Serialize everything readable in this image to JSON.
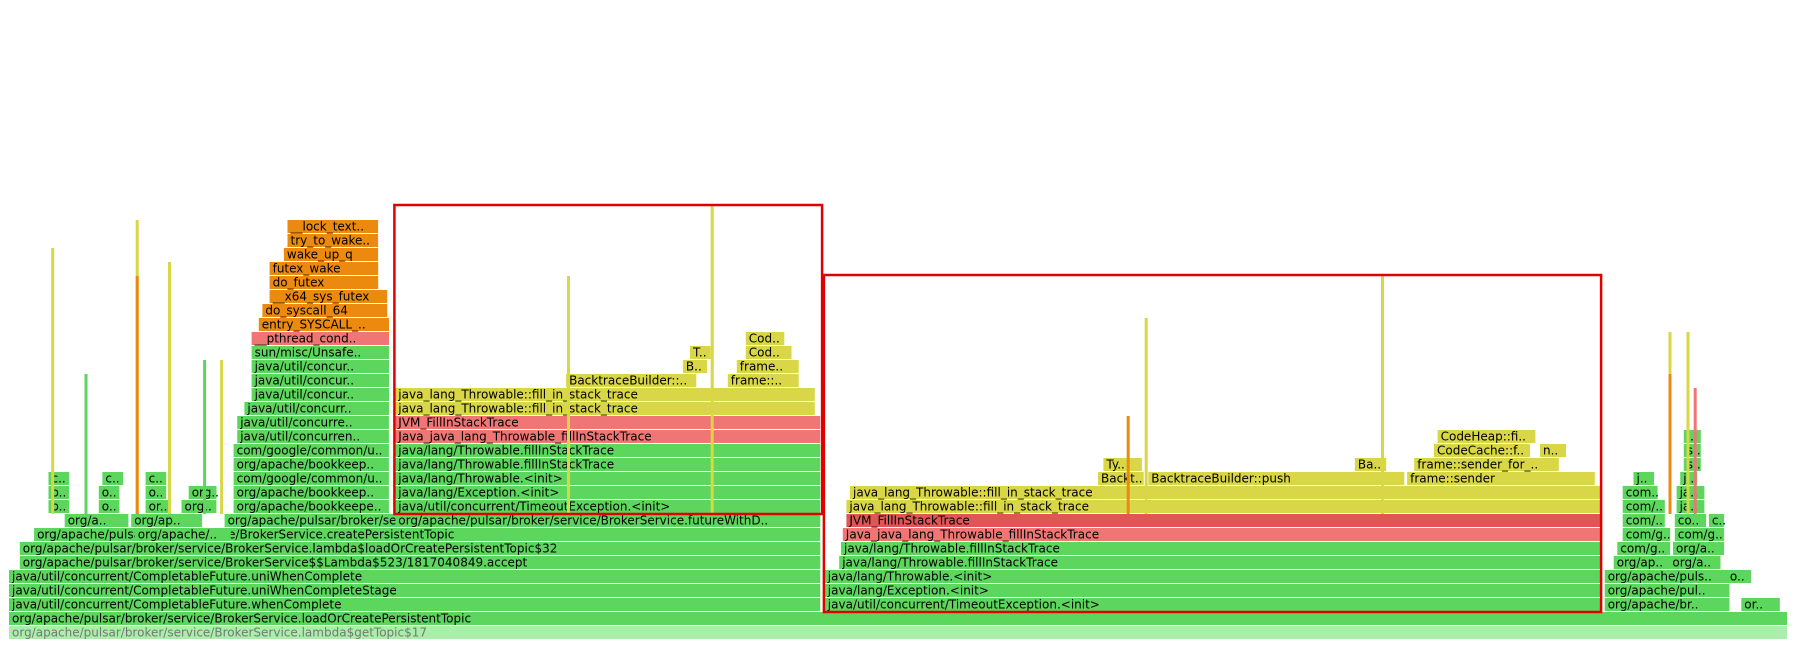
{
  "chart_data": {
    "type": "flamegraph",
    "colors": {
      "green": "#5dd65d",
      "green_dark": "#4fc94f",
      "green_light": "#a9efa9",
      "yellow": "#d9d647",
      "red": "#f07575",
      "red_dark": "#e05555",
      "orange": "#ec8a10",
      "highlight": "#e00000"
    },
    "frames": [
      {
        "label": "org/apache/pulsar/broker/service/BrokerService.lambda$getTopic$17",
        "x": 0.005,
        "w": 0.99,
        "depth": 0,
        "color": "green_light",
        "faded": true
      },
      {
        "label": "org/apache/pulsar/broker/service/BrokerService.loadOrCreatePersistentTopic",
        "x": 0.005,
        "w": 0.99,
        "depth": 1,
        "color": "green"
      },
      {
        "label": "java/util/concurrent/CompletableFuture.whenComplete",
        "x": 0.005,
        "w": 0.452,
        "depth": 2,
        "color": "green"
      },
      {
        "label": "java/util/concurrent/CompletableFuture.uniWhenCompleteStage",
        "x": 0.005,
        "w": 0.452,
        "depth": 3,
        "color": "green"
      },
      {
        "label": "java/util/concurrent/CompletableFuture.uniWhenComplete",
        "x": 0.005,
        "w": 0.452,
        "depth": 4,
        "color": "green"
      },
      {
        "label": "org/apache/pulsar/broker/service/BrokerService$$Lambda$523/1817040849.accept",
        "x": 0.011,
        "w": 0.446,
        "depth": 5,
        "color": "green"
      },
      {
        "label": "org/apache/pulsar/broker/service/BrokerService.lambda$loadOrCreatePersistentTopic$32",
        "x": 0.011,
        "w": 0.446,
        "depth": 6,
        "color": "green"
      },
      {
        "label": "org/apache/pulsar/broker/service/BrokerService.createPersistentTopic",
        "x": 0.019,
        "w": 0.438,
        "depth": 7,
        "color": "green"
      },
      {
        "label": "org/a..",
        "x": 0.036,
        "w": 0.036,
        "depth": 8,
        "color": "green"
      },
      {
        "label": "org/ap..",
        "x": 0.073,
        "w": 0.04,
        "depth": 8,
        "color": "green"
      },
      {
        "label": "org/apache/..",
        "x": 0.075,
        "w": 0.054,
        "depth": 7,
        "color": "green"
      },
      {
        "label": "org/apache/pulsar/broker/service/BrokerService.getManagedLedgerConfig",
        "x": 0.125,
        "w": 0.332,
        "depth": 8,
        "color": "green"
      },
      {
        "label": "org/apache/bookkeepe..",
        "x": 0.13,
        "w": 0.087,
        "depth": 9,
        "color": "green"
      },
      {
        "label": "org/apache/bookkeep..",
        "x": 0.13,
        "w": 0.087,
        "depth": 10,
        "color": "green"
      },
      {
        "label": "org/apache/bookkeep..",
        "x": 0.13,
        "w": 0.087,
        "depth": 12,
        "color": "green"
      },
      {
        "label": "com/google/common/u..",
        "x": 0.13,
        "w": 0.087,
        "depth": 11,
        "color": "green"
      },
      {
        "label": "com/google/common/u..",
        "x": 0.13,
        "w": 0.087,
        "depth": 13,
        "color": "green"
      },
      {
        "label": "java/util/concurren..",
        "x": 0.132,
        "w": 0.085,
        "depth": 14,
        "color": "green"
      },
      {
        "label": "java/util/concurre..",
        "x": 0.132,
        "w": 0.085,
        "depth": 15,
        "color": "green"
      },
      {
        "label": "java/util/concurr..",
        "x": 0.136,
        "w": 0.081,
        "depth": 16,
        "color": "green"
      },
      {
        "label": "java/util/concur..",
        "x": 0.14,
        "w": 0.077,
        "depth": 17,
        "color": "green"
      },
      {
        "label": "java/util/concur..",
        "x": 0.14,
        "w": 0.077,
        "depth": 18,
        "color": "green"
      },
      {
        "label": "java/util/concur..",
        "x": 0.14,
        "w": 0.077,
        "depth": 19,
        "color": "green"
      },
      {
        "label": "sun/misc/Unsafe..",
        "x": 0.14,
        "w": 0.077,
        "depth": 20,
        "color": "green"
      },
      {
        "label": "__pthread_cond..",
        "x": 0.14,
        "w": 0.077,
        "depth": 21,
        "color": "red"
      },
      {
        "label": "entry_SYSCALL_..",
        "x": 0.144,
        "w": 0.073,
        "depth": 22,
        "color": "orange"
      },
      {
        "label": "do_syscall_64",
        "x": 0.146,
        "w": 0.07,
        "depth": 23,
        "color": "orange"
      },
      {
        "label": "__x64_sys_futex",
        "x": 0.15,
        "w": 0.066,
        "depth": 24,
        "color": "orange"
      },
      {
        "label": "do_futex",
        "x": 0.15,
        "w": 0.061,
        "depth": 25,
        "color": "orange"
      },
      {
        "label": "futex_wake",
        "x": 0.15,
        "w": 0.061,
        "depth": 26,
        "color": "orange"
      },
      {
        "label": "wake_up_q",
        "x": 0.158,
        "w": 0.053,
        "depth": 27,
        "color": "orange"
      },
      {
        "label": "try_to_wake..",
        "x": 0.16,
        "w": 0.051,
        "depth": 28,
        "color": "orange"
      },
      {
        "label": "__lock_text..",
        "x": 0.16,
        "w": 0.051,
        "depth": 29,
        "color": "orange"
      },
      {
        "label": "org/apache/pulsar/broker/service/BrokerService.futureWithD..",
        "x": 0.22,
        "w": 0.237,
        "depth": 8,
        "color": "green"
      },
      {
        "label": "java/util/concurrent/TimeoutException.<init>",
        "x": 0.22,
        "w": 0.237,
        "depth": 9,
        "color": "green"
      },
      {
        "label": "java/lang/Exception.<init>",
        "x": 0.22,
        "w": 0.237,
        "depth": 10,
        "color": "green"
      },
      {
        "label": "java/lang/Throwable.<init>",
        "x": 0.22,
        "w": 0.237,
        "depth": 11,
        "color": "green"
      },
      {
        "label": "java/lang/Throwable.fillInStackTrace",
        "x": 0.22,
        "w": 0.237,
        "depth": 12,
        "color": "green"
      },
      {
        "label": "java/lang/Throwable.fillInStackTrace",
        "x": 0.22,
        "w": 0.237,
        "depth": 13,
        "color": "green"
      },
      {
        "label": "Java_java_lang_Throwable_fillInStackTrace",
        "x": 0.22,
        "w": 0.237,
        "depth": 14,
        "color": "red"
      },
      {
        "label": "JVM_FillInStackTrace",
        "x": 0.22,
        "w": 0.237,
        "depth": 15,
        "color": "red"
      },
      {
        "label": "java_lang_Throwable::fill_in_stack_trace",
        "x": 0.22,
        "w": 0.234,
        "depth": 16,
        "color": "yellow"
      },
      {
        "label": "java_lang_Throwable::fill_in_stack_trace",
        "x": 0.22,
        "w": 0.234,
        "depth": 17,
        "color": "yellow"
      },
      {
        "label": "BacktraceBuilder::..",
        "x": 0.315,
        "w": 0.073,
        "depth": 18,
        "color": "yellow"
      },
      {
        "label": "frame::..",
        "x": 0.405,
        "w": 0.04,
        "depth": 18,
        "color": "yellow"
      },
      {
        "label": "B..",
        "x": 0.38,
        "w": 0.014,
        "depth": 19,
        "color": "yellow"
      },
      {
        "label": "frame..",
        "x": 0.41,
        "w": 0.035,
        "depth": 19,
        "color": "yellow"
      },
      {
        "label": "T..",
        "x": 0.384,
        "w": 0.012,
        "depth": 20,
        "color": "yellow"
      },
      {
        "label": "Cod..",
        "x": 0.415,
        "w": 0.026,
        "depth": 20,
        "color": "yellow"
      },
      {
        "label": "Cod..",
        "x": 0.415,
        "w": 0.022,
        "depth": 21,
        "color": "yellow"
      },
      {
        "label": "java/util/concurrent/TimeoutException.<init>",
        "x": 0.459,
        "w": 0.432,
        "depth": 2,
        "color": "green"
      },
      {
        "label": "java/lang/Exception.<init>",
        "x": 0.459,
        "w": 0.432,
        "depth": 3,
        "color": "green"
      },
      {
        "label": "java/lang/Throwable.<init>",
        "x": 0.459,
        "w": 0.432,
        "depth": 4,
        "color": "green"
      },
      {
        "label": "java/lang/Throwable.fillInStackTrace",
        "x": 0.467,
        "w": 0.424,
        "depth": 5,
        "color": "green"
      },
      {
        "label": "java/lang/Throwable.fillInStackTrace",
        "x": 0.468,
        "w": 0.423,
        "depth": 6,
        "color": "green"
      },
      {
        "label": "Java_java_lang_Throwable_fillInStackTrace",
        "x": 0.469,
        "w": 0.422,
        "depth": 7,
        "color": "red"
      },
      {
        "label": "JVM_FillInStackTrace",
        "x": 0.471,
        "w": 0.42,
        "depth": 8,
        "color": "red_dark"
      },
      {
        "label": "java_lang_Throwable::fill_in_stack_trace",
        "x": 0.471,
        "w": 0.42,
        "depth": 9,
        "color": "yellow"
      },
      {
        "label": "java_lang_Throwable::fill_in_stack_trace",
        "x": 0.473,
        "w": 0.418,
        "depth": 10,
        "color": "yellow"
      },
      {
        "label": "Backt..",
        "x": 0.611,
        "w": 0.026,
        "depth": 11,
        "color": "yellow"
      },
      {
        "label": "BacktraceBuilder::push",
        "x": 0.639,
        "w": 0.143,
        "depth": 11,
        "color": "yellow"
      },
      {
        "label": "frame::sender",
        "x": 0.783,
        "w": 0.105,
        "depth": 11,
        "color": "yellow"
      },
      {
        "label": "Ty..",
        "x": 0.614,
        "w": 0.022,
        "depth": 12,
        "color": "yellow"
      },
      {
        "label": "Ba..",
        "x": 0.754,
        "w": 0.018,
        "depth": 12,
        "color": "yellow"
      },
      {
        "label": "frame::sender_for_..",
        "x": 0.787,
        "w": 0.081,
        "depth": 12,
        "color": "yellow"
      },
      {
        "label": "CodeCache::f..",
        "x": 0.798,
        "w": 0.054,
        "depth": 13,
        "color": "yellow"
      },
      {
        "label": "n..",
        "x": 0.857,
        "w": 0.015,
        "depth": 13,
        "color": "yellow"
      },
      {
        "label": "CodeHeap::fi..",
        "x": 0.8,
        "w": 0.055,
        "depth": 14,
        "color": "yellow"
      },
      {
        "label": "org/apache/br..",
        "x": 0.893,
        "w": 0.07,
        "depth": 2,
        "color": "green"
      },
      {
        "label": "or..",
        "x": 0.969,
        "w": 0.022,
        "depth": 2,
        "color": "green"
      },
      {
        "label": "org/apache/pul..",
        "x": 0.893,
        "w": 0.07,
        "depth": 3,
        "color": "green"
      },
      {
        "label": "org/apache/puls..",
        "x": 0.893,
        "w": 0.07,
        "depth": 4,
        "color": "green"
      },
      {
        "label": "o..",
        "x": 0.961,
        "w": 0.014,
        "depth": 4,
        "color": "green"
      },
      {
        "label": "org/ap..",
        "x": 0.898,
        "w": 0.04,
        "depth": 5,
        "color": "green"
      },
      {
        "label": "org/a..",
        "x": 0.929,
        "w": 0.029,
        "depth": 5,
        "color": "green"
      },
      {
        "label": "com/g..",
        "x": 0.9,
        "w": 0.03,
        "depth": 6,
        "color": "green"
      },
      {
        "label": "org/a..",
        "x": 0.931,
        "w": 0.029,
        "depth": 6,
        "color": "green"
      },
      {
        "label": "com/g..",
        "x": 0.903,
        "w": 0.027,
        "depth": 7,
        "color": "green"
      },
      {
        "label": "com/g..",
        "x": 0.932,
        "w": 0.028,
        "depth": 7,
        "color": "green"
      },
      {
        "label": "com/..",
        "x": 0.903,
        "w": 0.024,
        "depth": 8,
        "color": "green"
      },
      {
        "label": "co..",
        "x": 0.932,
        "w": 0.018,
        "depth": 8,
        "color": "green"
      },
      {
        "label": "c..",
        "x": 0.951,
        "w": 0.009,
        "depth": 8,
        "color": "green"
      },
      {
        "label": "com/..",
        "x": 0.903,
        "w": 0.024,
        "depth": 9,
        "color": "green"
      },
      {
        "label": "ja..",
        "x": 0.933,
        "w": 0.016,
        "depth": 9,
        "color": "green"
      },
      {
        "label": "com..",
        "x": 0.903,
        "w": 0.02,
        "depth": 10,
        "color": "green"
      },
      {
        "label": "ja..",
        "x": 0.933,
        "w": 0.016,
        "depth": 10,
        "color": "green"
      },
      {
        "label": "j..",
        "x": 0.909,
        "w": 0.012,
        "depth": 11,
        "color": "green"
      },
      {
        "label": "j..",
        "x": 0.935,
        "w": 0.01,
        "depth": 11,
        "color": "green"
      },
      {
        "label": "s..",
        "x": 0.937,
        "w": 0.01,
        "depth": 12,
        "color": "green"
      },
      {
        "label": "s..",
        "x": 0.937,
        "w": 0.01,
        "depth": 13,
        "color": "green"
      },
      {
        "label": "j..",
        "x": 0.937,
        "w": 0.01,
        "depth": 14,
        "color": "green"
      },
      {
        "label": "c..",
        "x": 0.027,
        "w": 0.012,
        "depth": 11,
        "color": "green"
      },
      {
        "label": "o..",
        "x": 0.027,
        "w": 0.012,
        "depth": 10,
        "color": "green"
      },
      {
        "label": "o..",
        "x": 0.027,
        "w": 0.012,
        "depth": 9,
        "color": "green"
      },
      {
        "label": "o..",
        "x": 0.055,
        "w": 0.012,
        "depth": 10,
        "color": "green"
      },
      {
        "label": "o..",
        "x": 0.055,
        "w": 0.012,
        "depth": 9,
        "color": "green"
      },
      {
        "label": "c..",
        "x": 0.057,
        "w": 0.012,
        "depth": 11,
        "color": "green"
      },
      {
        "label": "or..",
        "x": 0.081,
        "w": 0.014,
        "depth": 9,
        "color": "green"
      },
      {
        "label": "o..",
        "x": 0.081,
        "w": 0.012,
        "depth": 10,
        "color": "green"
      },
      {
        "label": "c..",
        "x": 0.081,
        "w": 0.012,
        "depth": 11,
        "color": "green"
      },
      {
        "label": "org..",
        "x": 0.101,
        "w": 0.02,
        "depth": 9,
        "color": "green"
      },
      {
        "label": "org..",
        "x": 0.105,
        "w": 0.016,
        "depth": 10,
        "color": "green"
      }
    ],
    "slivers": [
      {
        "x": 0.0285,
        "depth_top": 27,
        "color": "yellow"
      },
      {
        "x": 0.047,
        "depth_top": 18,
        "color": "green"
      },
      {
        "x": 0.0755,
        "depth_top": 29,
        "color": "yellow"
      },
      {
        "x": 0.0935,
        "depth_top": 26,
        "color": "yellow"
      },
      {
        "x": 0.113,
        "depth_top": 19,
        "color": "green"
      },
      {
        "x": 0.1225,
        "depth_top": 19,
        "color": "yellow"
      },
      {
        "x": 0.3155,
        "depth_top": 25,
        "color": "yellow"
      },
      {
        "x": 0.3955,
        "depth_top": 30,
        "color": "yellow"
      },
      {
        "x": 0.637,
        "depth_top": 22,
        "color": "yellow"
      },
      {
        "x": 0.7685,
        "depth_top": 25,
        "color": "yellow"
      },
      {
        "x": 0.9285,
        "depth_top": 21,
        "color": "yellow"
      },
      {
        "x": 0.9385,
        "depth_top": 21,
        "color": "yellow"
      },
      {
        "x": 0.627,
        "depth_top": 15,
        "color": "orange"
      },
      {
        "x": 0.0755,
        "depth_top": 25,
        "color": "orange"
      },
      {
        "x": 0.9285,
        "depth_top": 18,
        "color": "orange"
      },
      {
        "x": 0.9425,
        "depth_top": 17,
        "color": "red"
      }
    ],
    "highlights": [
      {
        "x0": 0.2195,
        "x1": 0.4575,
        "depth_top": 30,
        "depth_bottom": 9
      },
      {
        "x0": 0.4585,
        "x1": 0.891,
        "depth_top": 25,
        "depth_bottom": 2
      }
    ]
  }
}
